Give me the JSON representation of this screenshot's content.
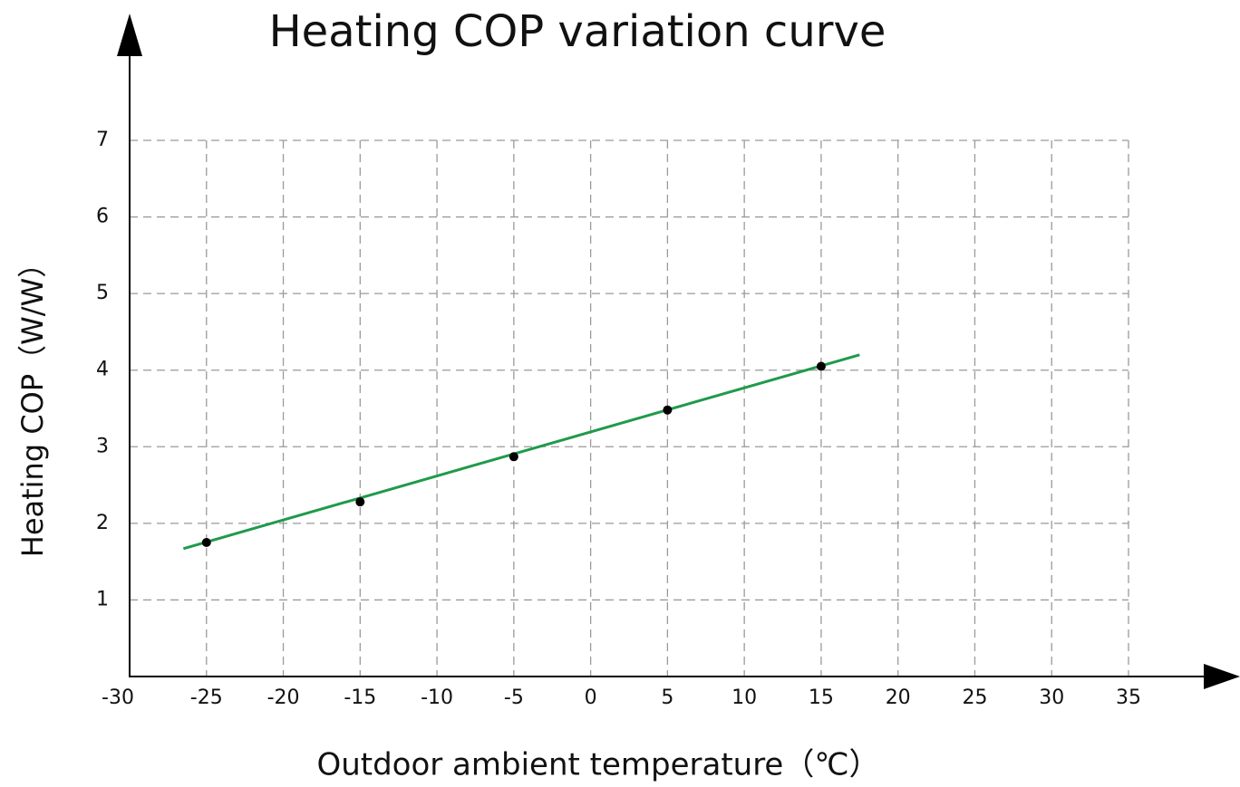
{
  "chart_data": {
    "type": "line",
    "title": "Heating COP variation curve",
    "x_label": "Outdoor ambient temperature（℃）",
    "y_label": "Heating COP（W/W）",
    "xlim": [
      -30,
      35
    ],
    "xticks": [
      -30,
      -25,
      -20,
      -15,
      -10,
      -5,
      0,
      5,
      10,
      15,
      20,
      25,
      30,
      35
    ],
    "ylim": [
      0,
      7
    ],
    "yticks": [
      1,
      2,
      3,
      4,
      5,
      6,
      7
    ],
    "grid": true,
    "line": {
      "color": "#1f9a4b",
      "x": [
        -26.5,
        17.5
      ],
      "values": [
        1.67,
        4.2
      ]
    },
    "points": {
      "color": "#000000",
      "x": [
        -25,
        -15,
        -5,
        5,
        15
      ],
      "values": [
        1.75,
        2.28,
        2.87,
        3.48,
        4.05
      ]
    }
  }
}
